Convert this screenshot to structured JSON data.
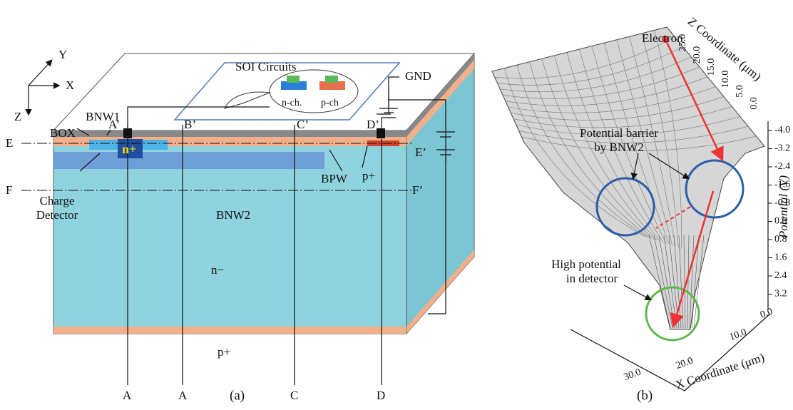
{
  "panel_a": {
    "caption": "(a)",
    "axes": {
      "y": "Y",
      "x": "X",
      "z": "Z"
    },
    "soi_title": "SOI Circuits",
    "nch": "n-ch.",
    "pch": "p-ch",
    "gnd": "GND",
    "bnw1": "BNW1",
    "box": "BOX",
    "a_top": "A’",
    "b_top": "B’",
    "c_top": "C’",
    "d_top": "D’",
    "e_left": "E",
    "e_right": "E’",
    "n_plus": "n+",
    "f_left": "F",
    "f_right": "F’",
    "charge_detector": [
      "Charge",
      "Detector"
    ],
    "bpw": "BPW",
    "p_plus_right": "p+",
    "bnw2": "BNW2",
    "n_minus": "n−",
    "bottom_labels": [
      "A",
      "A",
      "C",
      "D"
    ],
    "p_plus_bottom": "p+"
  },
  "panel_b": {
    "caption": "(b)",
    "electron": "Electron",
    "z_axis_label": "Z Coordinate (μm)",
    "z_ticks": [
      "25.0",
      "20.0",
      "15.0",
      "10.0",
      "5.0",
      "0.0"
    ],
    "barrier_label": [
      "Potential barrier",
      "by BNW2"
    ],
    "detector_label": [
      "High potential",
      "in detector"
    ],
    "potential_label": "Potential (V)",
    "potential_ticks": [
      "-4.0",
      "-3.2",
      "-2.4",
      "-1.6",
      "-0.8",
      "0.0",
      "0.8",
      "1.6",
      "2.4",
      "3.2"
    ],
    "x_axis_label": "X Coordinate (μm)",
    "x_ticks": [
      "30.0",
      "20.0",
      "10.0",
      "0.0"
    ]
  }
}
